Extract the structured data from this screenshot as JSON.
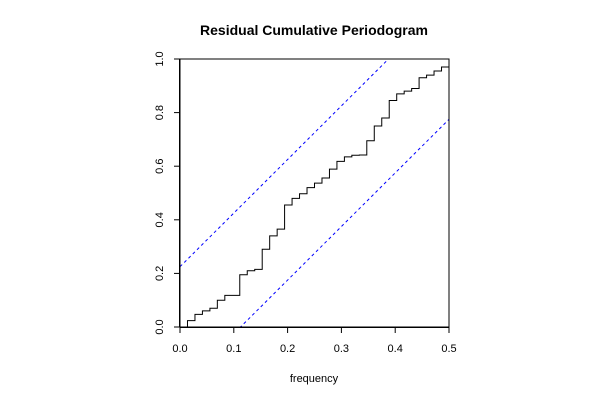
{
  "chart_data": {
    "type": "line",
    "title": "Residual Cumulative Periodogram",
    "xlabel": "frequency",
    "ylabel": "",
    "xlim": [
      0,
      0.5
    ],
    "ylim": [
      0,
      1
    ],
    "x_ticks": [
      0.0,
      0.1,
      0.2,
      0.3,
      0.4,
      0.5
    ],
    "x_tick_labels": [
      "0.0",
      "0.1",
      "0.2",
      "0.3",
      "0.4",
      "0.5"
    ],
    "y_ticks": [
      0.0,
      0.2,
      0.4,
      0.6,
      0.8,
      1.0
    ],
    "y_tick_labels": [
      "0.0",
      "0.2",
      "0.4",
      "0.6",
      "0.8",
      "1.0"
    ],
    "grid": false,
    "series": [
      {
        "style": "step",
        "color": "#000000",
        "x": [
          0.0,
          0.0139,
          0.0278,
          0.0417,
          0.0556,
          0.0694,
          0.0833,
          0.0972,
          0.1111,
          0.125,
          0.1389,
          0.1528,
          0.1667,
          0.1806,
          0.1944,
          0.2083,
          0.2222,
          0.2361,
          0.25,
          0.2639,
          0.2778,
          0.2917,
          0.3056,
          0.3194,
          0.3333,
          0.3472,
          0.3611,
          0.375,
          0.3889,
          0.4028,
          0.4167,
          0.4306,
          0.4444,
          0.4583,
          0.4722,
          0.4861,
          0.5
        ],
        "y": [
          0.0,
          0.024,
          0.047,
          0.06,
          0.07,
          0.1,
          0.118,
          0.118,
          0.195,
          0.21,
          0.215,
          0.29,
          0.34,
          0.365,
          0.455,
          0.48,
          0.497,
          0.52,
          0.537,
          0.556,
          0.589,
          0.618,
          0.635,
          0.641,
          0.642,
          0.695,
          0.75,
          0.78,
          0.845,
          0.87,
          0.88,
          0.89,
          0.93,
          0.94,
          0.955,
          0.97,
          1.0
        ]
      },
      {
        "style": "dashed",
        "color": "#0000ff",
        "x": [
          0,
          0.5
        ],
        "y": [
          0.225,
          1.225
        ]
      },
      {
        "style": "dashed",
        "color": "#0000ff",
        "x": [
          0,
          0.5
        ],
        "y": [
          -0.225,
          0.775
        ]
      }
    ]
  }
}
